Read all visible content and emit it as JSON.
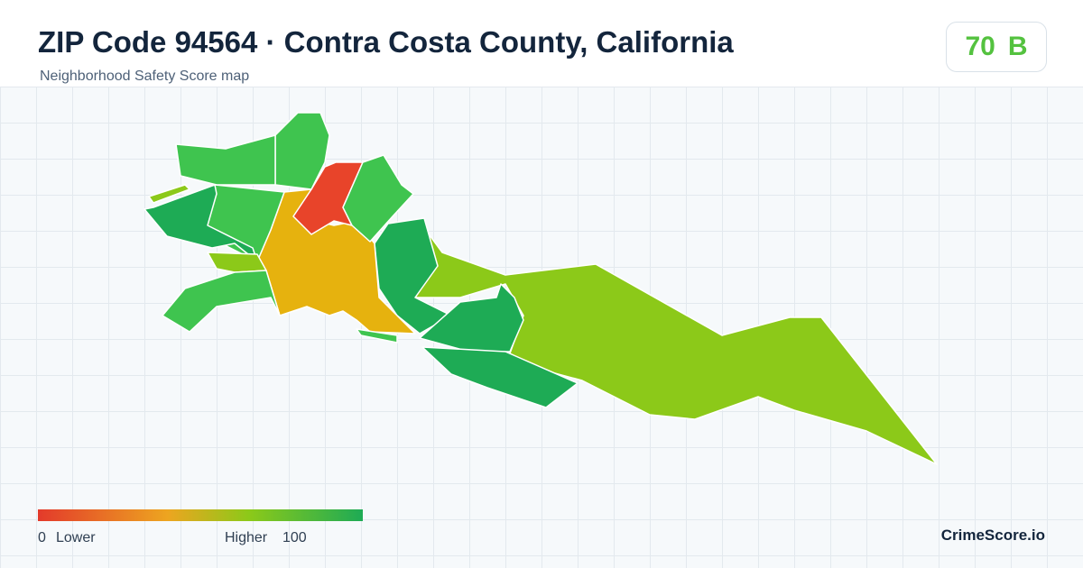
{
  "header": {
    "title": "ZIP Code 94564 · Contra Costa County, California",
    "subtitle": "Neighborhood Safety Score map"
  },
  "score": {
    "value": "70",
    "grade": "B"
  },
  "legend": {
    "min": "0",
    "min_label": "Lower",
    "max_label": "Higher",
    "max": "100"
  },
  "brand": "CrimeScore.io"
}
